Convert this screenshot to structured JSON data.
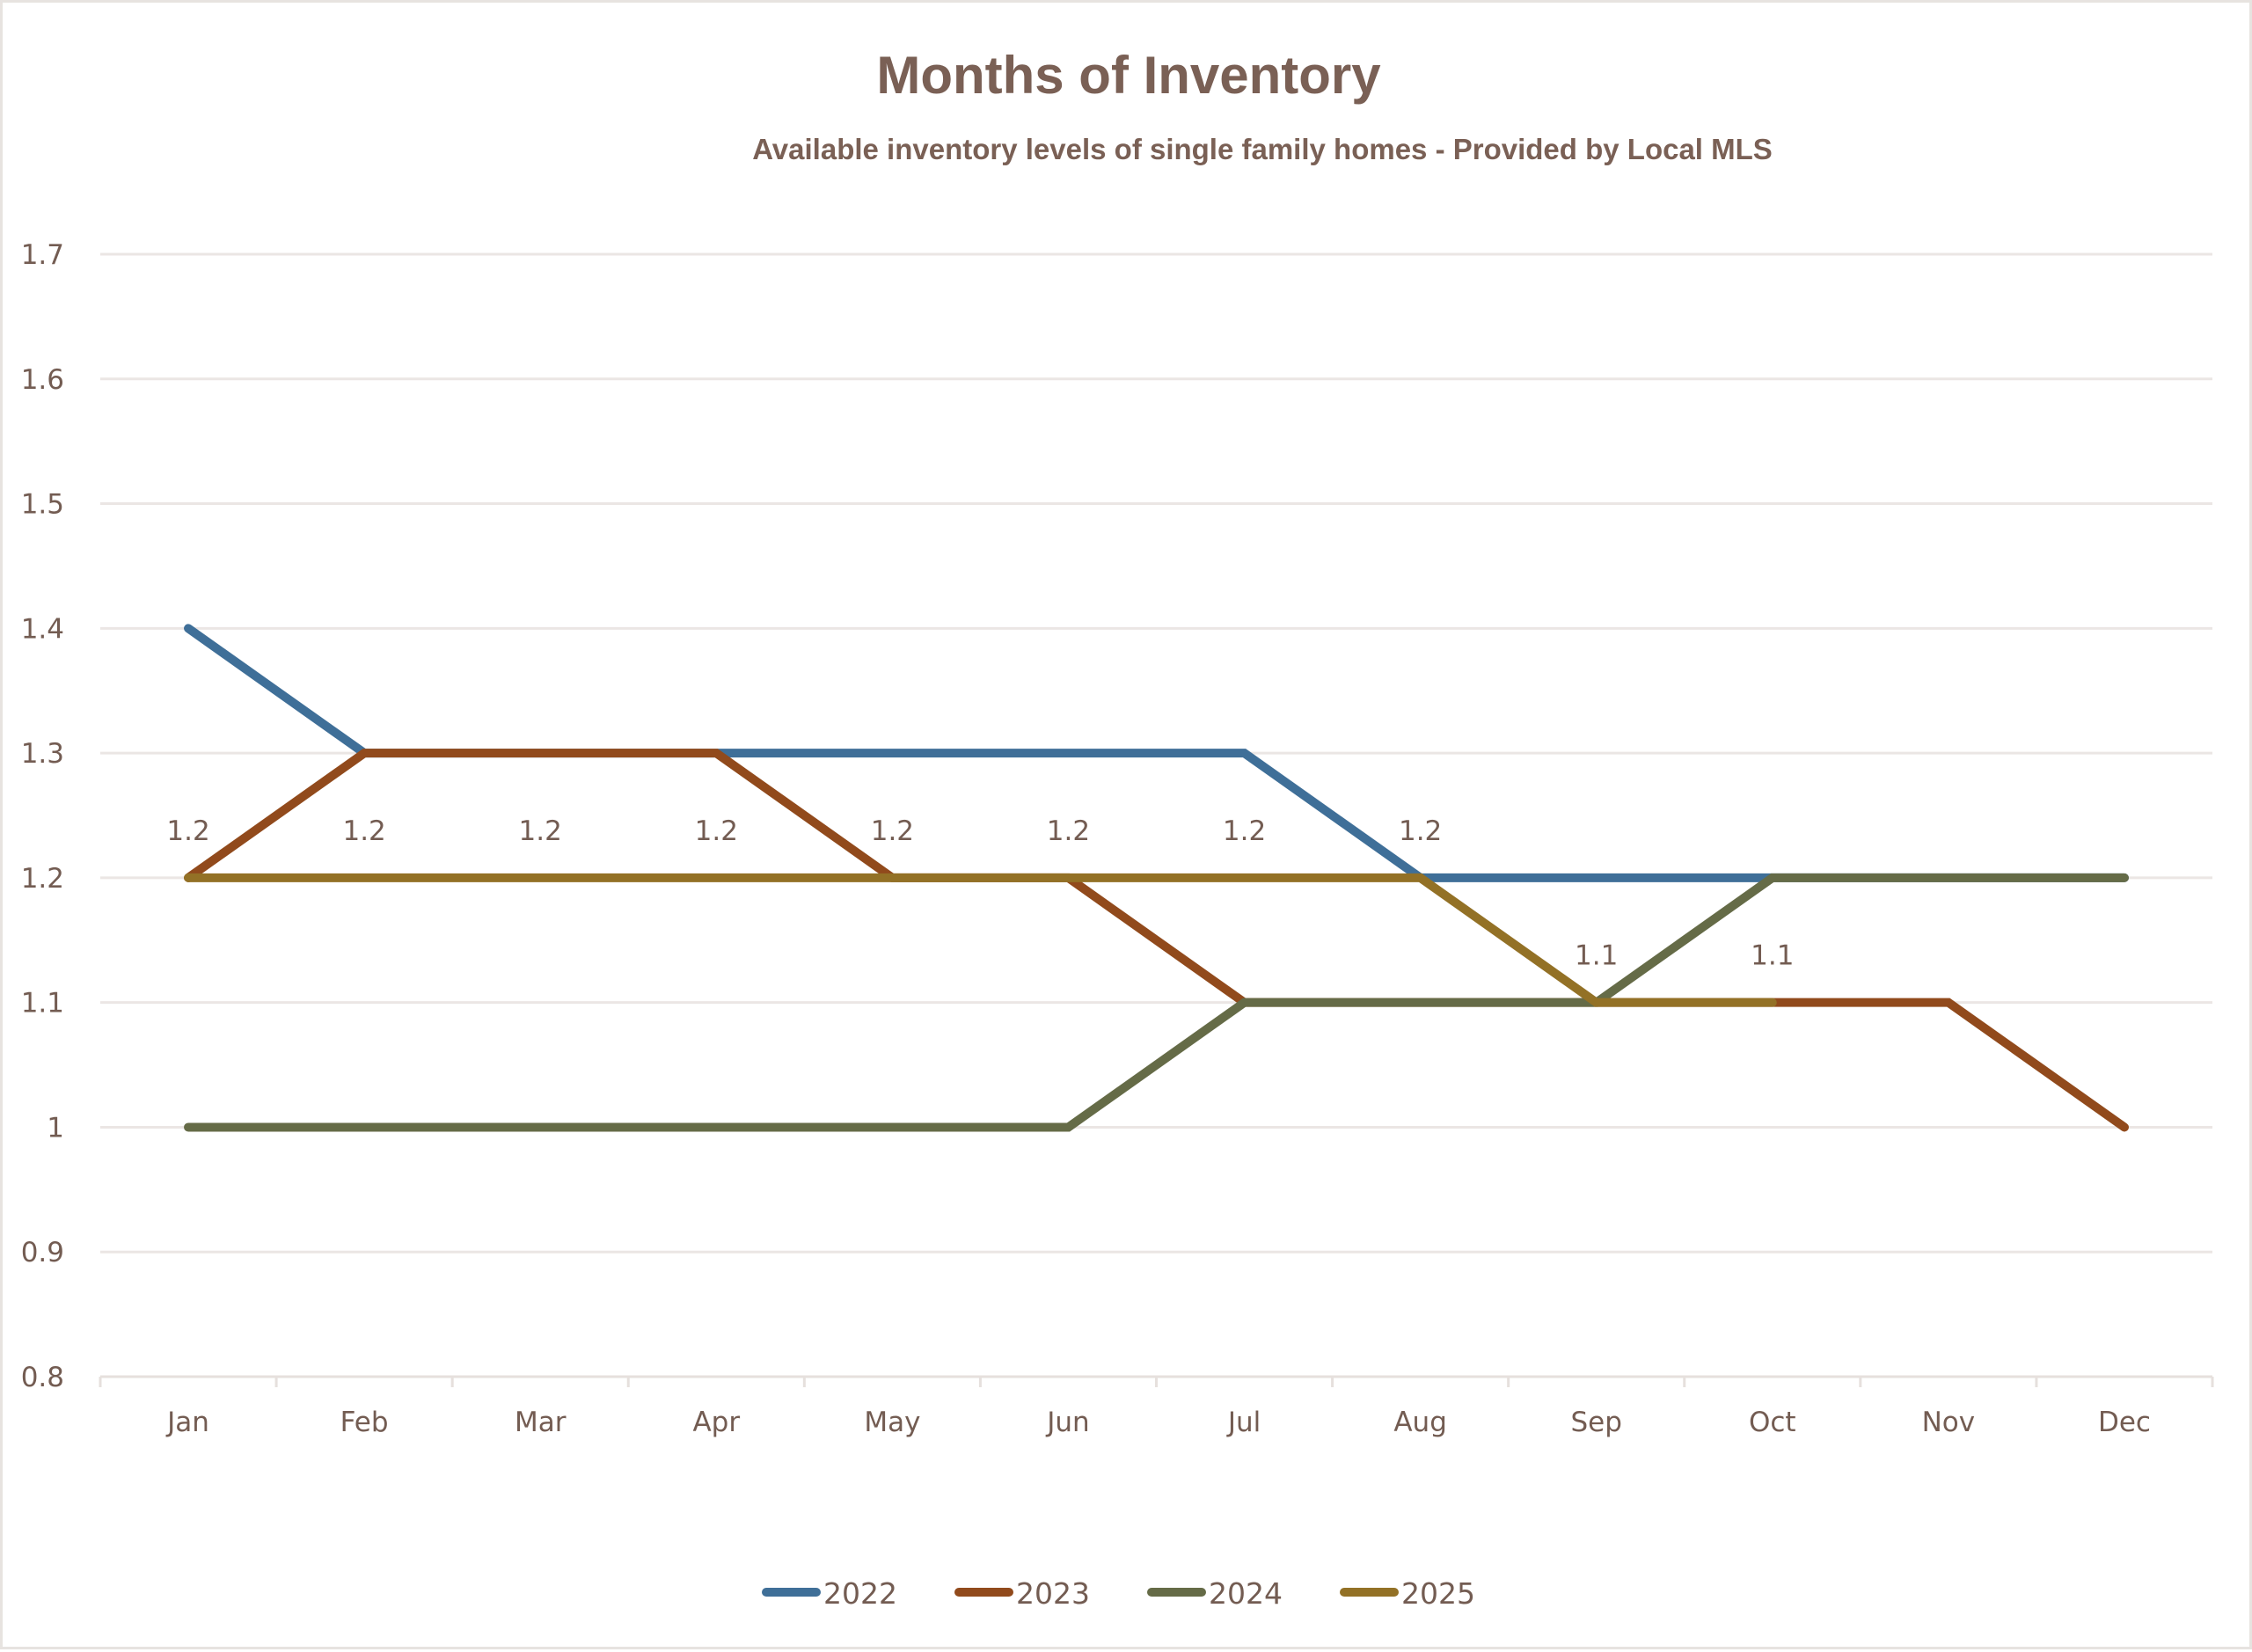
{
  "chart_data": {
    "type": "line",
    "title": "Months of Inventory",
    "subtitle": "Available inventory levels of single family homes  - Provided by Local MLS",
    "xlabel": "",
    "ylabel": "",
    "categories": [
      "Jan",
      "Feb",
      "Mar",
      "Apr",
      "May",
      "Jun",
      "Jul",
      "Aug",
      "Sep",
      "Oct",
      "Nov",
      "Dec"
    ],
    "ylim": [
      0.8,
      1.7
    ],
    "yticks": [
      "0.8",
      "0.9",
      "1",
      "1.1",
      "1.2",
      "1.3",
      "1.4",
      "1.5",
      "1.6",
      "1.7"
    ],
    "grid": true,
    "legend_position": "bottom",
    "series": [
      {
        "name": "2022",
        "color": "#3f6f98",
        "values": [
          1.4,
          1.3,
          1.3,
          1.3,
          1.3,
          1.3,
          1.3,
          1.2,
          1.2,
          1.2,
          1.2,
          1.2
        ]
      },
      {
        "name": "2023",
        "color": "#914a1c",
        "values": [
          1.2,
          1.3,
          1.3,
          1.3,
          1.2,
          1.2,
          1.1,
          1.1,
          1.1,
          1.1,
          1.1,
          1.0
        ]
      },
      {
        "name": "2024",
        "color": "#656b47",
        "values": [
          1.0,
          1.0,
          1.0,
          1.0,
          1.0,
          1.0,
          1.1,
          1.1,
          1.1,
          1.2,
          1.2,
          1.2
        ]
      },
      {
        "name": "2025",
        "color": "#937126",
        "values": [
          1.2,
          1.2,
          1.2,
          1.2,
          1.2,
          1.2,
          1.2,
          1.2,
          1.1,
          1.1,
          null,
          null
        ],
        "data_labels": [
          "1.2",
          "1.2",
          "1.2",
          "1.2",
          "1.2",
          "1.2",
          "1.2",
          "1.2",
          "1.1",
          "1.1"
        ]
      }
    ]
  }
}
